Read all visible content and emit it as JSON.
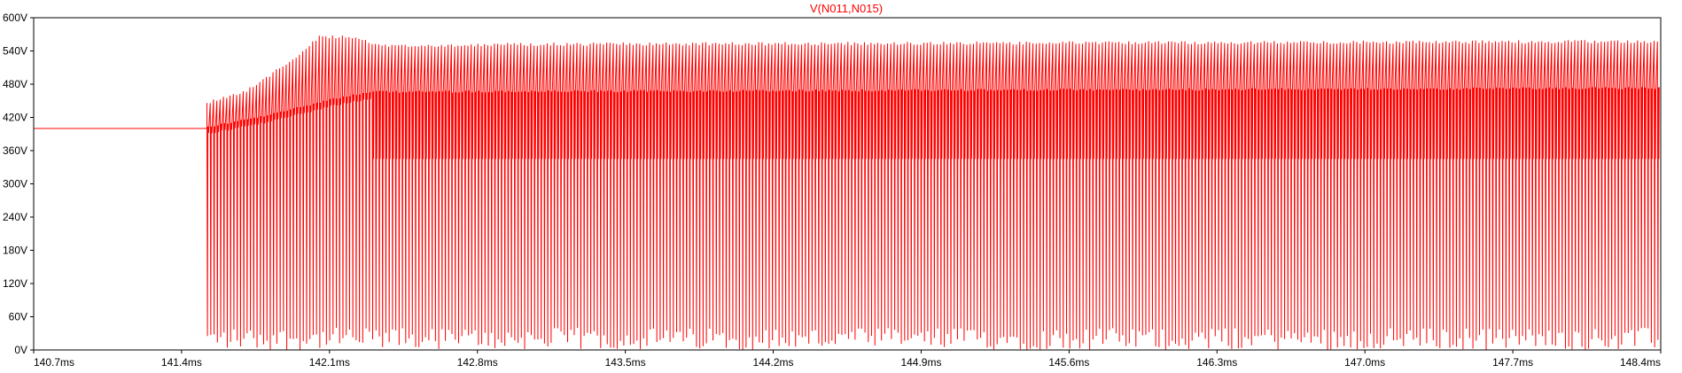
{
  "chart_data": {
    "type": "line",
    "title": "V(N011,N015)",
    "xlabel": "",
    "ylabel": "",
    "xlim": [
      140.7,
      148.4
    ],
    "ylim": [
      0,
      600
    ],
    "x_unit": "ms",
    "y_unit": "V",
    "x_ticks": [
      "140.7ms",
      "141.4ms",
      "142.1ms",
      "142.8ms",
      "143.5ms",
      "144.2ms",
      "144.9ms",
      "145.6ms",
      "146.3ms",
      "147.0ms",
      "147.7ms",
      "148.4ms"
    ],
    "y_ticks": [
      "0V",
      "60V",
      "120V",
      "180V",
      "240V",
      "300V",
      "360V",
      "420V",
      "480V",
      "540V",
      "600V"
    ],
    "grid": false,
    "colors": {
      "trace": "#ff0000",
      "axis": "#000000",
      "background": "#ffffff"
    },
    "series": [
      {
        "name": "V(N011,N015)",
        "color": "#ff0000",
        "description_points": {
          "steady_before_ms": [
            140.7,
            141.52
          ],
          "steady_value_V": 400,
          "switching_start_ms": 141.52,
          "peak_envelope": [
            [
              141.52,
              450
            ],
            [
              141.7,
              470
            ],
            [
              141.9,
              520
            ],
            [
              142.05,
              568
            ],
            [
              142.2,
              568
            ],
            [
              142.35,
              552
            ],
            [
              143.0,
              555
            ],
            [
              148.4,
              560
            ]
          ],
          "mid_envelope": [
            [
              141.52,
              405
            ],
            [
              141.8,
              425
            ],
            [
              142.1,
              455
            ],
            [
              142.3,
              468
            ],
            [
              148.4,
              475
            ]
          ],
          "lower_envelope": [
            [
              142.3,
              345
            ],
            [
              148.4,
              345
            ]
          ],
          "minimum_V": 0
        }
      }
    ]
  }
}
